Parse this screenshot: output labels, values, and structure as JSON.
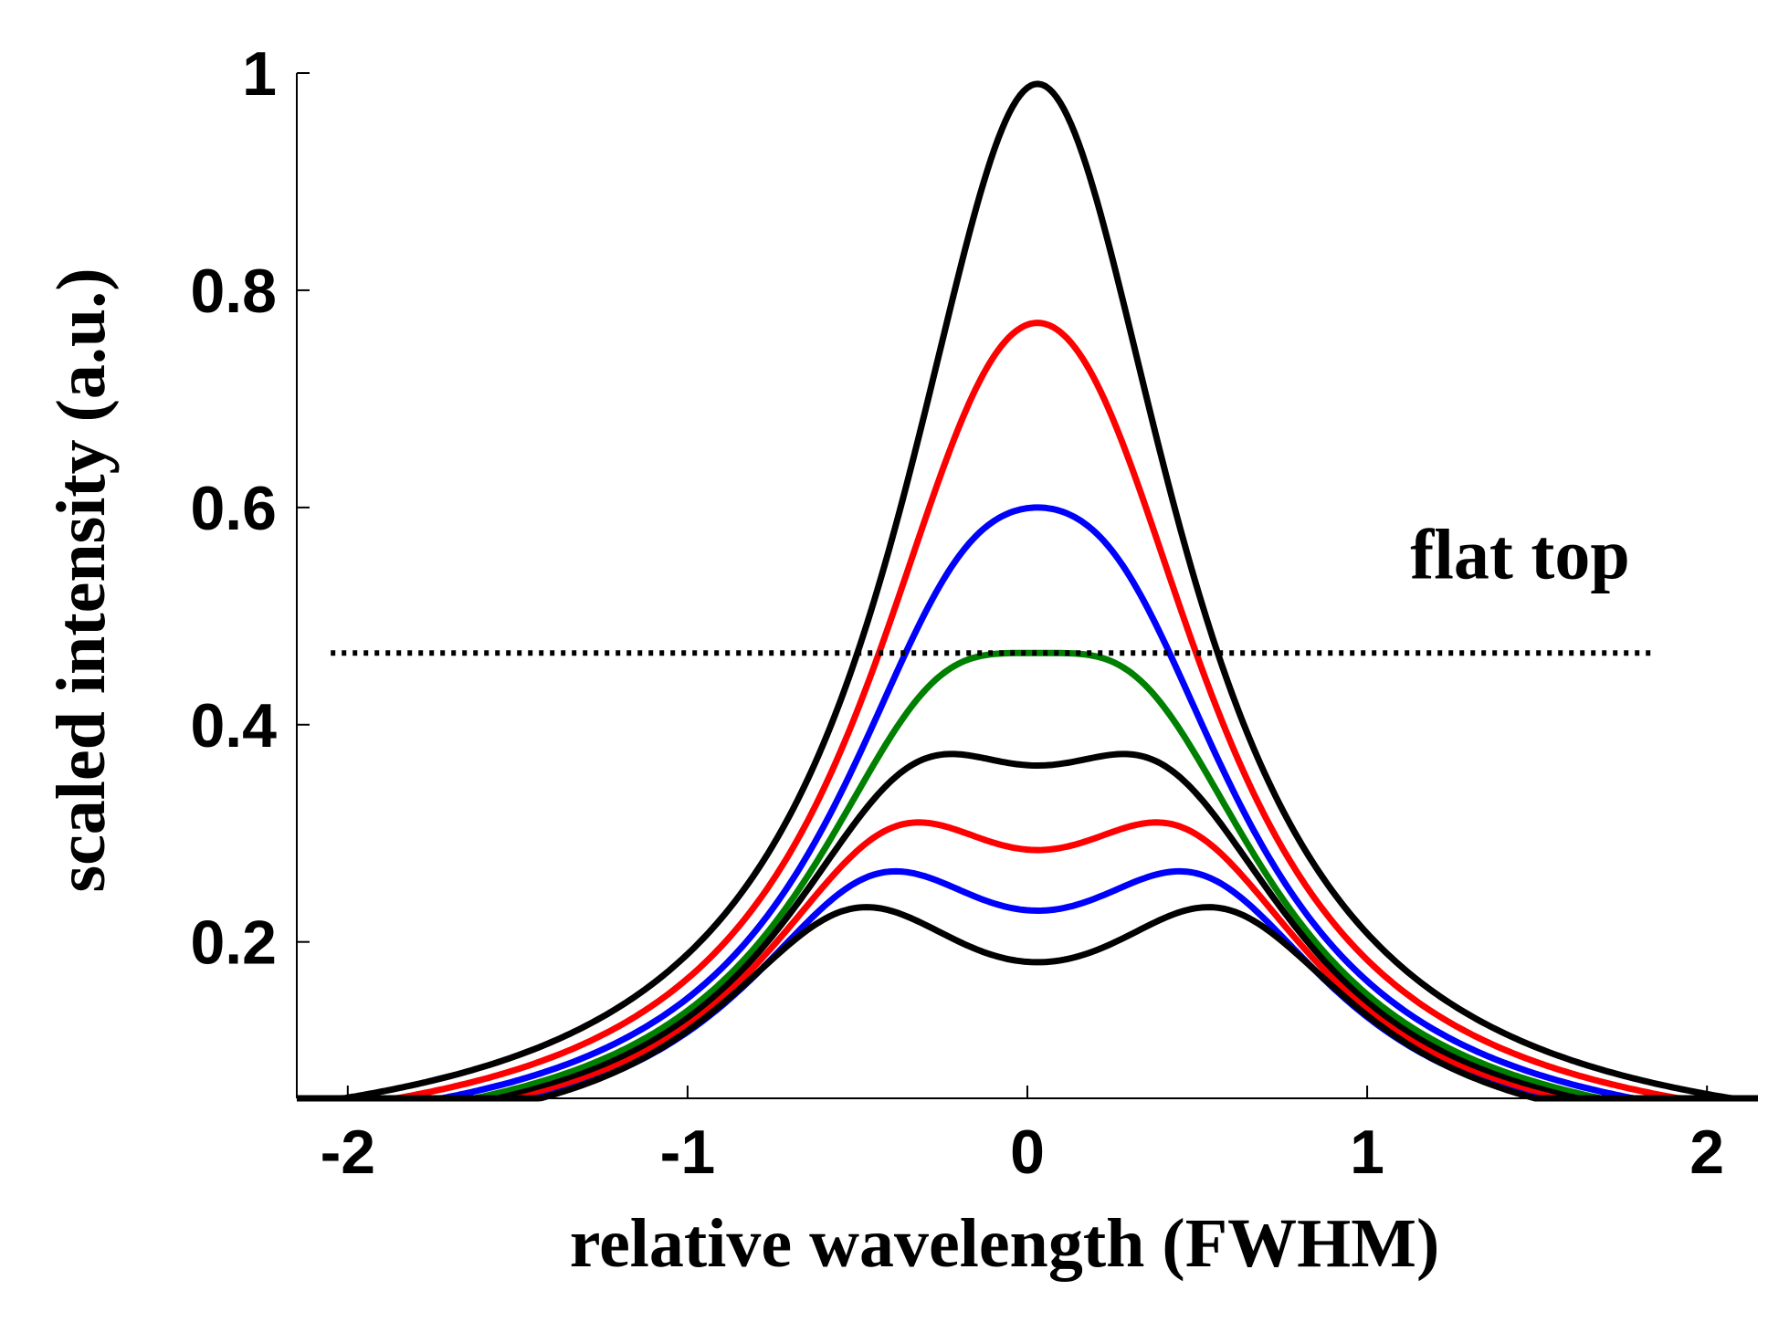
{
  "chart_data": {
    "type": "line",
    "title": "",
    "xlabel": "relative wavelength (FWHM)",
    "ylabel": "scaled intensity (a.u.)",
    "xlim": [
      -2.15,
      2.15
    ],
    "ylim": [
      0.056,
      1.0
    ],
    "xticks": [
      -2,
      -1,
      0,
      1,
      2
    ],
    "yticks": [
      0.2,
      0.4,
      0.6,
      0.8,
      1
    ],
    "xtick_labels": [
      "-2",
      "-1",
      "0",
      "1",
      "2"
    ],
    "ytick_labels": [
      "0.2",
      "0.4",
      "0.6",
      "0.8",
      "1"
    ],
    "grid": false,
    "legend": "none",
    "center_x": 0.03,
    "series_model": "sum of two Lorentzian peaks at x = ±s (FWHM 1), normalized per series",
    "x": [
      -2.15,
      -2.0,
      -1.5,
      -1.0,
      -0.5,
      -0.25,
      0.0,
      0.25,
      0.5,
      1.0,
      1.5,
      2.0,
      2.15
    ],
    "series": [
      {
        "color": "#000000",
        "peak_separation": 0.0,
        "max": 0.99,
        "values": [
          0.056,
          0.065,
          0.11,
          0.24,
          0.52,
          0.79,
          0.99,
          0.79,
          0.52,
          0.24,
          0.11,
          0.065,
          0.056
        ]
      },
      {
        "color": "#ff0000",
        "peak_separation": 0.15,
        "max": 0.77,
        "values": [
          0.06,
          0.07,
          0.12,
          0.26,
          0.52,
          0.7,
          0.77,
          0.7,
          0.52,
          0.26,
          0.12,
          0.07,
          0.06
        ]
      },
      {
        "color": "#0000ff",
        "peak_separation": 0.22,
        "max": 0.6,
        "values": [
          0.059,
          0.068,
          0.115,
          0.25,
          0.48,
          0.58,
          0.6,
          0.58,
          0.48,
          0.25,
          0.115,
          0.068,
          0.059
        ]
      },
      {
        "color": "#008000",
        "peak_separation": 0.29,
        "max": 0.466,
        "values": [
          0.058,
          0.067,
          0.113,
          0.23,
          0.4,
          0.46,
          0.466,
          0.46,
          0.4,
          0.23,
          0.113,
          0.067,
          0.058
        ]
      },
      {
        "color": "#000000",
        "peak_separation": 0.36,
        "max": 0.373,
        "values": [
          0.057,
          0.066,
          0.11,
          0.21,
          0.34,
          0.372,
          0.365,
          0.372,
          0.34,
          0.21,
          0.11,
          0.066,
          0.057
        ]
      },
      {
        "color": "#ff0000",
        "peak_separation": 0.42,
        "max": 0.31,
        "values": [
          0.057,
          0.066,
          0.108,
          0.2,
          0.3,
          0.305,
          0.285,
          0.305,
          0.3,
          0.2,
          0.108,
          0.066,
          0.057
        ]
      },
      {
        "color": "#0000ff",
        "peak_separation": 0.47,
        "max": 0.265,
        "values": [
          0.056,
          0.065,
          0.106,
          0.19,
          0.26,
          0.255,
          0.22,
          0.255,
          0.26,
          0.19,
          0.106,
          0.065,
          0.056
        ]
      },
      {
        "color": "#000000",
        "peak_separation": 0.54,
        "max": 0.232,
        "values": [
          0.056,
          0.064,
          0.103,
          0.18,
          0.232,
          0.205,
          0.17,
          0.205,
          0.232,
          0.18,
          0.103,
          0.064,
          0.056
        ]
      }
    ],
    "reference_lines": [
      {
        "label": "flat top",
        "y": 0.466,
        "x_range": [
          -2.05,
          1.85
        ],
        "style": "dotted",
        "color": "#000000"
      }
    ],
    "annotations": [
      {
        "text": "flat top",
        "x": 1.45,
        "y": 0.56
      }
    ]
  }
}
